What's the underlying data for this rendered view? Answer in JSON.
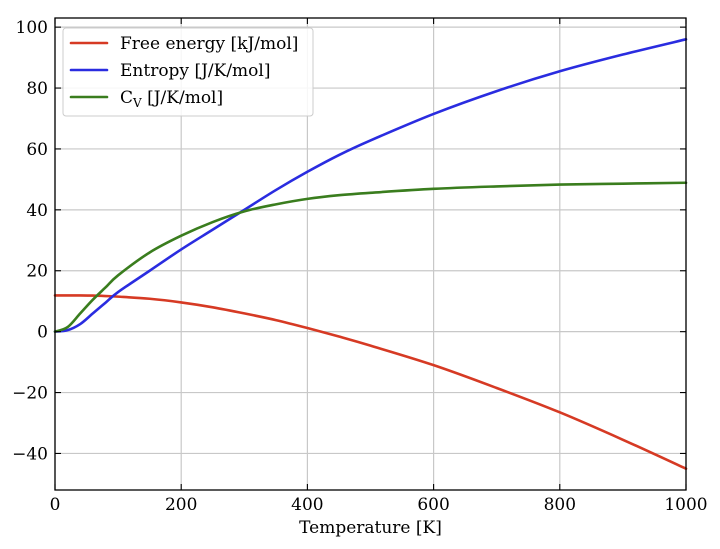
{
  "chart_data": {
    "type": "line",
    "title": "",
    "xlabel": "Temperature [K]",
    "ylabel": "",
    "xlim": [
      0,
      1000
    ],
    "ylim": [
      -52,
      103
    ],
    "x_ticks": [
      0,
      200,
      400,
      600,
      800,
      1000
    ],
    "y_ticks": [
      -40,
      -20,
      0,
      20,
      40,
      60,
      80,
      100
    ],
    "x_tick_labels": [
      "0",
      "200",
      "400",
      "600",
      "800",
      "1000"
    ],
    "y_tick_labels": [
      "−40",
      "−20",
      "0",
      "20",
      "40",
      "60",
      "80",
      "100"
    ],
    "grid": true,
    "legend_position": "upper-left",
    "x": [
      0,
      20,
      40,
      60,
      80,
      100,
      150,
      200,
      250,
      300,
      350,
      400,
      450,
      500,
      600,
      700,
      800,
      900,
      1000
    ],
    "series": [
      {
        "name": "Free energy [kJ/mol]",
        "color": "#d63a24",
        "values": [
          11.9,
          11.9,
          11.9,
          11.85,
          11.7,
          11.5,
          10.8,
          9.6,
          8.0,
          6.0,
          3.8,
          1.2,
          -1.6,
          -4.6,
          -11.0,
          -18.5,
          -26.5,
          -35.5,
          -45.0
        ]
      },
      {
        "name": "Entropy [J/K/mol]",
        "color": "#2a2ce0",
        "values": [
          0,
          0.5,
          2.5,
          6.0,
          9.5,
          13.0,
          20.0,
          27.0,
          33.5,
          40.0,
          46.5,
          52.5,
          58.0,
          62.8,
          71.5,
          79.0,
          85.5,
          91.0,
          96.0
        ]
      },
      {
        "name": "C_V [J/K/mol]",
        "color": "#3a7d1e",
        "values": [
          0,
          1.5,
          6.0,
          10.5,
          14.5,
          18.5,
          26.0,
          31.5,
          36.0,
          39.5,
          41.8,
          43.6,
          44.8,
          45.6,
          46.9,
          47.7,
          48.3,
          48.6,
          48.9
        ]
      }
    ],
    "legend": {
      "free_energy": "Free energy [kJ/mol]",
      "entropy": "Entropy [J/K/mol]",
      "cv_symbol": "C",
      "cv_subscript": "V",
      "cv_units": " [J/K/mol]"
    }
  }
}
